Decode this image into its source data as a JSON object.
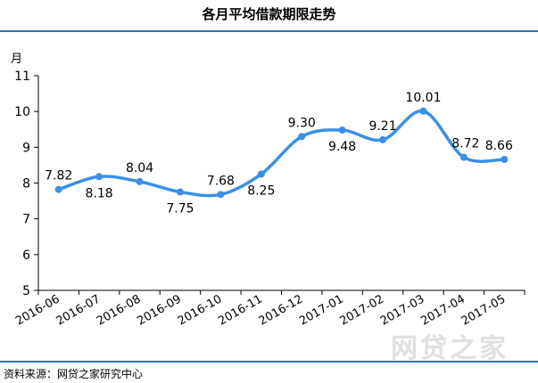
{
  "chart_data": {
    "type": "line",
    "title": "各月平均借款期限走势",
    "ylabel": "月",
    "categories": [
      "2016-06",
      "2016-07",
      "2016-08",
      "2016-09",
      "2016-10",
      "2016-11",
      "2016-12",
      "2017-01",
      "2017-02",
      "2017-03",
      "2017-04",
      "2017-05"
    ],
    "series": [
      {
        "values": [
          7.82,
          8.18,
          8.04,
          7.75,
          7.68,
          8.25,
          9.3,
          9.48,
          9.21,
          10.01,
          8.72,
          8.66
        ],
        "labels": [
          "7.82",
          "8.18",
          "8.04",
          "7.75",
          "7.68",
          "8.25",
          "9.30",
          "9.48",
          "9.21",
          "10.01",
          "8.72",
          "8.66"
        ]
      }
    ],
    "yticks": [
      "5",
      "6",
      "7",
      "8",
      "9",
      "10",
      "11"
    ],
    "ylim": [
      5,
      11
    ],
    "grid": false,
    "smooth": true,
    "line_color": "#3b8fe8"
  },
  "source": "资料来源：网贷之家研究中心",
  "watermark": "网贷之家"
}
